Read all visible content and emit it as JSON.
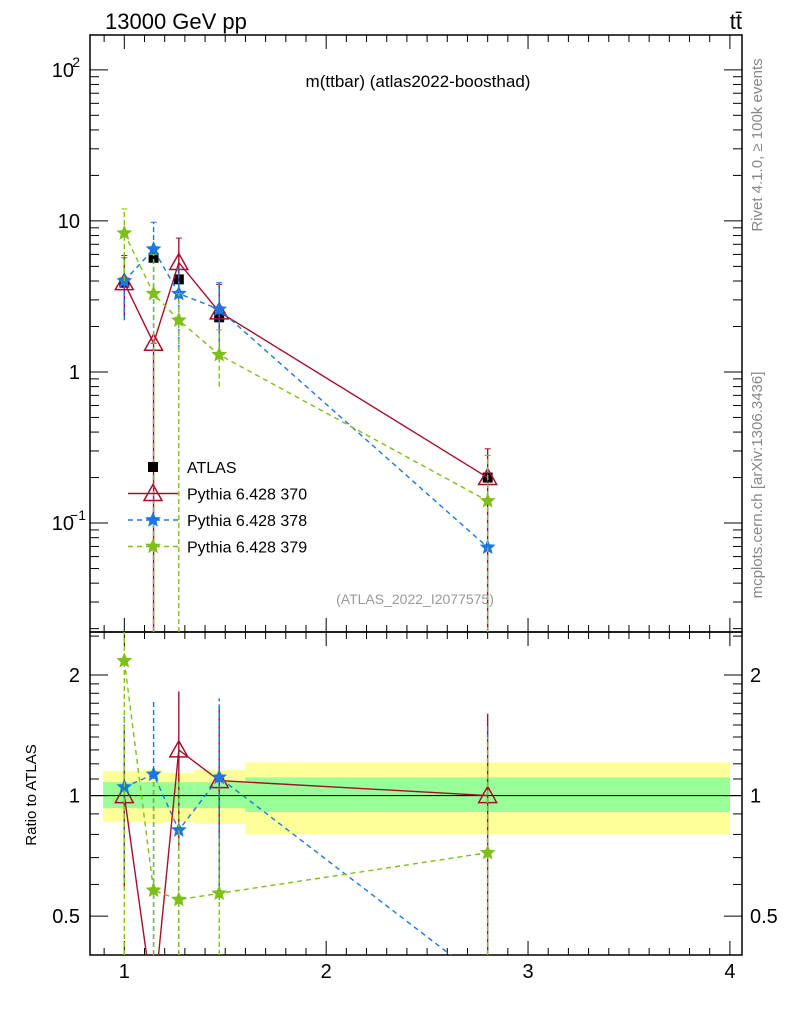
{
  "header": {
    "energy": "13000 GeV pp",
    "process": "tt̄"
  },
  "side": {
    "rivet": "Rivet 4.1.0, ≥ 100k events",
    "mcplots": "mcplots.cern.ch [arXiv:1306.3436]"
  },
  "chart_data": [
    {
      "type": "line",
      "title": "m(ttbar) (atlas2022-boosthad)",
      "analysis": "(ATLAS_2022_I2077575)",
      "xlabel": "",
      "ylabel": "",
      "xlim": [
        0.83,
        4.06
      ],
      "ylim": [
        0.019,
        170
      ],
      "yscale": "log",
      "y_tick_labels": [
        "10^-1",
        "1",
        "10",
        "10^2"
      ],
      "legend_position": "lower-left",
      "x": [
        1.0,
        1.145,
        1.27,
        1.47,
        2.8
      ],
      "series": [
        {
          "name": "ATLAS",
          "color": "#000000",
          "marker": "square",
          "values": [
            3.9,
            5.7,
            4.1,
            2.3,
            0.2
          ]
        },
        {
          "name": "Pythia 6.428 370",
          "color": "#a50f2d",
          "marker": "triangle-open",
          "line": "solid",
          "values": [
            3.9,
            1.55,
            5.3,
            2.5,
            0.2
          ],
          "err_low": [
            2.3,
            0.019,
            2.9,
            1.3,
            0.019
          ],
          "err_high": [
            5.9,
            1.55,
            7.7,
            3.8,
            0.31
          ]
        },
        {
          "name": "Pythia 6.428 378",
          "color": "#1c78e0",
          "marker": "star",
          "line": "dashed",
          "values": [
            4.0,
            6.5,
            3.3,
            2.6,
            0.069
          ],
          "err_low": [
            2.2,
            0.019,
            1.4,
            1.25,
            0.019
          ],
          "err_high": [
            5.7,
            9.8,
            4.8,
            3.9,
            0.28
          ]
        },
        {
          "name": "Pythia 6.428 379",
          "color": "#7fbf1a",
          "marker": "star",
          "line": "dashed",
          "values": [
            8.3,
            3.3,
            2.2,
            1.3,
            0.14
          ],
          "err_low": [
            4.0,
            0.019,
            0.019,
            0.8,
            0.019
          ],
          "err_high": [
            12.0,
            6.0,
            3.3,
            1.9,
            0.28
          ]
        }
      ]
    },
    {
      "type": "line",
      "ylabel": "Ratio to ATLAS",
      "xlim": [
        0.83,
        4.06
      ],
      "ylim": [
        0.4,
        2.56
      ],
      "yscale": "log",
      "x_tick_labels": [
        "1",
        "2",
        "3",
        "4"
      ],
      "y_tick_labels": [
        "0.5",
        "1",
        "2"
      ],
      "x": [
        1.0,
        1.145,
        1.27,
        1.47,
        2.8
      ],
      "bands": {
        "edges": [
          0.895,
          1.094,
          1.194,
          1.347,
          1.6,
          4.0
        ],
        "yellow_low": [
          0.86,
          0.85,
          0.86,
          0.85,
          0.8
        ],
        "yellow_high": [
          1.15,
          1.16,
          1.14,
          1.16,
          1.21
        ],
        "green_low": [
          0.93,
          0.93,
          0.93,
          0.93,
          0.91
        ],
        "green_high": [
          1.08,
          1.08,
          1.08,
          1.08,
          1.11
        ],
        "yellow_color": "#ffff99",
        "green_color": "#99ff99"
      },
      "series": [
        {
          "name": "Pythia 6.428 370",
          "color": "#a50f2d",
          "values": [
            1.0,
            0.27,
            1.3,
            1.09,
            1.0
          ],
          "err_low": [
            0.59,
            0.27,
            0.75,
            0.55,
            0.37
          ],
          "err_high": [
            1.48,
            0.27,
            1.82,
            1.67,
            1.6
          ]
        },
        {
          "name": "Pythia 6.428 378",
          "color": "#1c78e0",
          "values": [
            1.05,
            1.13,
            0.82,
            1.11,
            0.34
          ],
          "err_low": [
            0.61,
            0.4,
            0.4,
            0.57,
            0.3
          ],
          "err_high": [
            1.6,
            1.72,
            1.1,
            1.75,
            1.5
          ]
        },
        {
          "name": "Pythia 6.428 379",
          "color": "#7fbf1a",
          "values": [
            2.17,
            0.58,
            0.55,
            0.57,
            0.72
          ],
          "err_low": [
            0.4,
            0.4,
            0.4,
            0.4,
            0.4
          ],
          "err_high": [
            2.56,
            1.1,
            1.1,
            0.8,
            1.4
          ]
        }
      ]
    }
  ]
}
